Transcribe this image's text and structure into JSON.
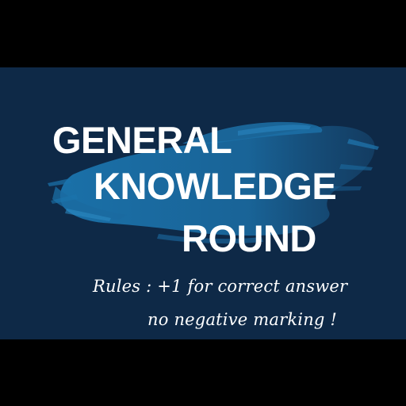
{
  "slide": {
    "title_lines": [
      "GENERAL",
      "KNOWLEDGE",
      "ROUND"
    ],
    "rules_lines": [
      "Rules : +1 for correct answer",
      "no negative marking !"
    ]
  },
  "colors": {
    "background": "#000000",
    "slide_bg": "#0e2947",
    "brush": "#1a6fa6",
    "text": "#ffffff"
  }
}
